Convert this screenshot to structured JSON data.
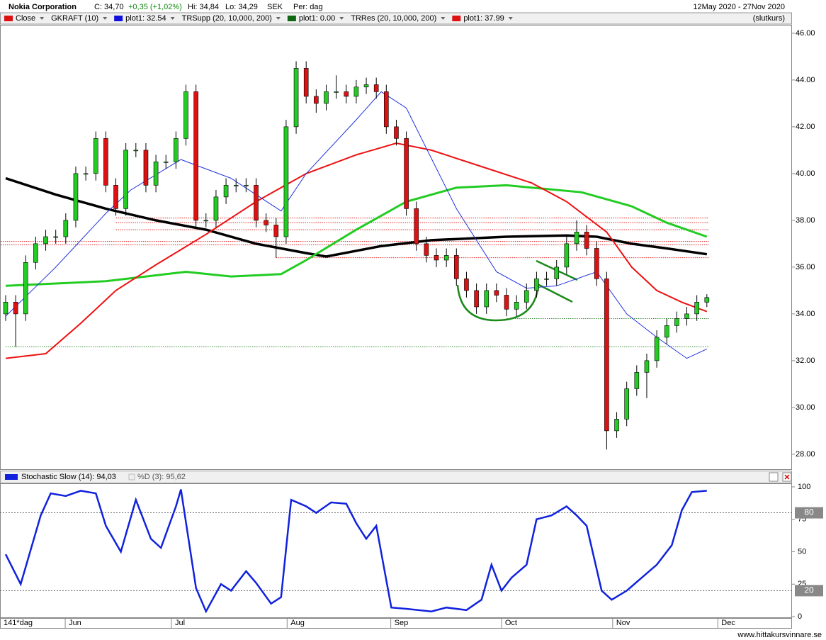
{
  "header": {
    "name": "Nokia Corporation",
    "close": "C: 34,70",
    "change": "+0,35 (+1,02%)",
    "high": "Hi: 34,84",
    "low": "Lo: 34,29",
    "currency": "SEK",
    "period": "Per: dag",
    "range": "12May 2020 - 27Nov 2020",
    "mode": "(slutkurs)"
  },
  "legend": [
    {
      "name": "Close",
      "color": "#dd1111"
    },
    {
      "name": "GKRAFT (10)",
      "color": null
    },
    {
      "name": "plot1: 32.54",
      "color": "#1111dd"
    },
    {
      "name": "TRSupp (20, 10,000, 200)",
      "color": null
    },
    {
      "name": "plot1: 0.00",
      "color": "#116611"
    },
    {
      "name": "TRRes (20, 10,000, 200)",
      "color": null
    },
    {
      "name": "plot1: 37.99",
      "color": "#dd1111"
    }
  ],
  "chart_data": [
    {
      "type": "candlestick",
      "up_color": "#22cc22",
      "down_color": "#dd1111",
      "x": [
        0,
        2,
        4,
        6,
        8,
        10,
        12,
        14,
        16,
        18,
        20,
        22,
        24,
        26,
        28,
        30,
        32,
        34,
        36,
        38,
        40,
        42,
        44,
        46,
        48,
        50,
        52,
        54,
        56,
        58,
        60,
        62,
        64,
        66,
        68,
        70,
        72,
        74,
        76,
        78,
        80,
        82,
        84,
        86,
        88,
        90,
        92,
        94,
        96,
        98,
        100,
        102,
        104,
        106,
        108,
        110,
        112,
        114,
        116,
        118,
        120,
        122,
        124,
        126,
        128,
        130,
        132,
        134,
        136,
        138,
        140
      ],
      "open": [
        34.0,
        34.5,
        34,
        36.2,
        37,
        37.3,
        37.3,
        38,
        40,
        40,
        41.5,
        39.5,
        38.5,
        41,
        41,
        39.5,
        40.5,
        40.5,
        41.5,
        43.5,
        38,
        38,
        39,
        39.5,
        39.5,
        39.5,
        38,
        37.8,
        37.3,
        42,
        44.5,
        43.3,
        43,
        43.5,
        43.5,
        43.3,
        43.7,
        43.8,
        43.5,
        42,
        41.5,
        38.5,
        37,
        36.5,
        36.3,
        36.5,
        35.5,
        35,
        34.3,
        35,
        34.8,
        34.2,
        34.5,
        35,
        35.5,
        35.5,
        36,
        37,
        37.5,
        36.8,
        35.5,
        29,
        29.5,
        30.8,
        31.5,
        32,
        33,
        33.5,
        33.8,
        34,
        34.5
      ],
      "high": [
        34.8,
        34.8,
        36.5,
        37.3,
        37.6,
        37.6,
        38.3,
        40.3,
        40.3,
        41.8,
        41.8,
        39.8,
        41.3,
        41.3,
        41.3,
        40.8,
        40.8,
        41.8,
        43.8,
        43.8,
        38.3,
        39.3,
        39.8,
        39.8,
        39.8,
        39.8,
        38.3,
        38.1,
        42.3,
        44.8,
        44.8,
        43.6,
        43.8,
        44.2,
        43.8,
        44.0,
        44.1,
        44.1,
        43.8,
        42.3,
        41.8,
        38.8,
        37.3,
        36.8,
        36.8,
        36.8,
        35.8,
        35.3,
        35.3,
        35.3,
        35.1,
        34.8,
        35.3,
        35.8,
        35.8,
        36.3,
        37.3,
        38.0,
        37.8,
        37.1,
        35.8,
        29.8,
        31.1,
        31.8,
        32.3,
        33.3,
        33.8,
        34.1,
        34.3,
        34.8,
        34.84
      ],
      "low": [
        33.7,
        32.6,
        33.7,
        35.9,
        36.7,
        37.0,
        37.0,
        37.7,
        39.7,
        39.7,
        39.2,
        38.2,
        38.2,
        40.7,
        39.2,
        39.2,
        40.2,
        40.2,
        41.2,
        37.7,
        37.7,
        37.7,
        38.7,
        39.2,
        39.2,
        37.7,
        37.5,
        36.4,
        37.0,
        41.7,
        43.0,
        42.6,
        42.7,
        43.2,
        43.0,
        43.0,
        43.4,
        43.2,
        41.7,
        41.2,
        38.2,
        36.7,
        36.2,
        36.0,
        36.0,
        35.2,
        34.7,
        34.0,
        34.0,
        34.5,
        33.9,
        33.9,
        34.2,
        34.7,
        35.2,
        35.2,
        35.7,
        36.7,
        36.5,
        35.2,
        28.2,
        28.7,
        29.2,
        30.5,
        30.4,
        31.7,
        32.7,
        33.2,
        33.5,
        33.7,
        34.29
      ],
      "close": [
        34.5,
        34,
        36.2,
        37,
        37.3,
        37.3,
        38,
        40,
        40,
        41.5,
        39.5,
        38.5,
        41,
        41,
        39.5,
        40.5,
        40.5,
        41.5,
        43.5,
        38,
        38,
        39,
        39.5,
        39.5,
        39.5,
        38,
        37.8,
        37.3,
        42,
        44.5,
        43.3,
        43,
        43.5,
        43.5,
        43.3,
        43.7,
        43.8,
        43.5,
        42,
        41.5,
        38.5,
        37,
        36.5,
        36.3,
        36.5,
        35.5,
        35,
        34.3,
        35,
        34.8,
        34.2,
        34.5,
        35,
        35.5,
        35.5,
        36,
        37,
        37.5,
        36.8,
        35.5,
        29,
        29.5,
        30.8,
        31.5,
        32,
        33,
        33.5,
        33.8,
        34,
        34.5,
        34.7
      ],
      "series": [
        {
          "color": "#000000",
          "width": 3.5,
          "x": [
            0,
            10,
            20,
            30,
            40,
            50,
            60,
            64,
            75,
            85,
            100,
            112,
            118,
            125,
            132,
            140
          ],
          "values": [
            39.8,
            39.1,
            38.5,
            38.0,
            37.6,
            37.0,
            36.6,
            36.45,
            36.9,
            37.15,
            37.3,
            37.35,
            37.3,
            37.0,
            36.8,
            36.55
          ]
        },
        {
          "color": "#22cc22",
          "width": 3,
          "x": [
            0,
            20,
            36,
            45,
            55,
            60,
            70,
            80,
            90,
            100,
            105,
            115,
            125,
            132,
            140
          ],
          "values": [
            35.2,
            35.4,
            35.8,
            35.6,
            35.7,
            36.3,
            37.6,
            38.8,
            39.4,
            39.5,
            39.4,
            39.2,
            38.6,
            37.9,
            37.3
          ]
        },
        {
          "color": "#ee1111",
          "width": 2,
          "x": [
            0,
            8,
            15,
            22,
            30,
            40,
            50,
            60,
            70,
            78,
            85,
            95,
            105,
            112,
            120,
            125,
            130,
            135,
            140
          ],
          "values": [
            32.1,
            32.3,
            33.6,
            35.0,
            36.1,
            37.4,
            38.8,
            40.0,
            40.8,
            41.3,
            41.0,
            40.3,
            39.6,
            38.8,
            37.5,
            36.0,
            35.0,
            34.5,
            34.1
          ]
        },
        {
          "color": "#2233dd",
          "width": 1,
          "x": [
            0,
            10,
            20,
            25,
            35,
            45,
            55,
            60,
            70,
            75,
            80,
            90,
            98,
            104,
            110,
            118,
            124,
            130,
            136,
            140
          ],
          "values": [
            33.9,
            36.0,
            38.3,
            39.3,
            40.6,
            39.8,
            38.4,
            40.0,
            42.3,
            43.5,
            42.8,
            38.5,
            35.8,
            35.1,
            35.2,
            35.8,
            34.0,
            33.0,
            32.1,
            32.5
          ]
        }
      ],
      "levels": [
        {
          "value": 38.1,
          "color": "#e02020",
          "from": 22
        },
        {
          "value": 37.9,
          "color": "#e02020",
          "from": 22
        },
        {
          "value": 37.6,
          "color": "#e02020",
          "from": 22
        },
        {
          "value": 37.1,
          "color": "#e02020",
          "from": -1
        },
        {
          "value": 36.95,
          "color": "#e02020",
          "from": -1
        },
        {
          "value": 36.4,
          "color": "#e02020",
          "from": 54
        },
        {
          "value": 33.8,
          "color": "#3a8a3a",
          "from": 100
        },
        {
          "value": 32.6,
          "color": "#3a8a3a",
          "from": 0
        }
      ],
      "xlim": [
        -1.13,
        157
      ],
      "xticks": [
        {
          "value": 12.6,
          "label": "Jun"
        },
        {
          "value": 33.8,
          "label": "Jul"
        },
        {
          "value": 56.9,
          "label": "Aug"
        },
        {
          "value": 77.6,
          "label": "Sep"
        },
        {
          "value": 99.7,
          "label": "Oct"
        },
        {
          "value": 121.9,
          "label": "Nov"
        },
        {
          "value": 142.9,
          "label": "Dec"
        }
      ],
      "ylim": [
        27.36,
        46.36
      ],
      "yticks": [
        {
          "value": 28,
          "label": "28.00"
        },
        {
          "value": 30,
          "label": "30.00"
        },
        {
          "value": 32,
          "label": "32.00"
        },
        {
          "value": 34,
          "label": "34.00"
        },
        {
          "value": 36,
          "label": "36.00"
        },
        {
          "value": 38,
          "label": "38.00"
        },
        {
          "value": 40,
          "label": "40.00"
        },
        {
          "value": 42,
          "label": "42.00"
        },
        {
          "value": 44,
          "label": "44.00"
        },
        {
          "value": 46,
          "label": "46.00"
        }
      ]
    },
    {
      "type": "line",
      "title": "Stochastic Slow (14): 94,03",
      "subtitle": "%D (3): 95,62",
      "period_label": "141*dag",
      "series": [
        {
          "color": "#1122dd",
          "x": [
            0,
            3,
            7,
            9,
            12,
            15,
            18,
            20,
            23,
            26,
            29,
            31,
            34,
            35,
            38,
            40,
            43,
            45,
            48,
            50,
            53,
            55,
            57,
            60,
            62,
            65,
            68,
            70,
            72,
            74,
            77,
            80,
            85,
            88,
            92,
            95,
            97,
            99,
            101,
            104,
            106,
            109,
            112,
            114,
            116,
            119,
            121,
            124,
            127,
            130,
            133,
            135,
            137,
            140
          ],
          "values": [
            48,
            25,
            78,
            95,
            93,
            97,
            95,
            70,
            50,
            90,
            60,
            53,
            85,
            98,
            22,
            4,
            25,
            20,
            35,
            26,
            10,
            15,
            90,
            85,
            80,
            88,
            87,
            72,
            60,
            70,
            7,
            6,
            4,
            7,
            5,
            13,
            40,
            20,
            30,
            40,
            75,
            78,
            85,
            78,
            70,
            20,
            13,
            20,
            30,
            40,
            55,
            82,
            96,
            97
          ]
        }
      ],
      "levels": [
        80,
        20
      ],
      "xlim": [
        -1.13,
        157
      ],
      "ylim": [
        -1.1,
        102.7
      ],
      "yticks": [
        0,
        25,
        50,
        75,
        100
      ]
    }
  ],
  "footer": {
    "site": "www.hittakursvinnare.se"
  }
}
